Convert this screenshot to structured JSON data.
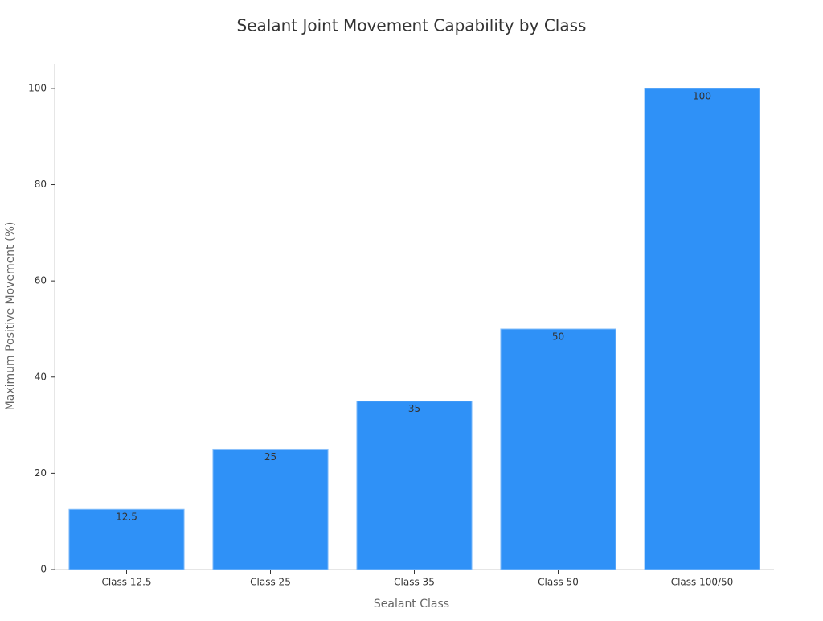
{
  "chart_data": {
    "type": "bar",
    "title": "Sealant Joint Movement Capability by Class",
    "x_label": "Sealant Class",
    "y_label": "Maximum Positive Movement (%)",
    "categories": [
      "Class 12.5",
      "Class 25",
      "Class 35",
      "Class 50",
      "Class 100/50"
    ],
    "values": [
      12.5,
      25,
      35,
      50,
      100
    ],
    "color": "#2f91f7",
    "ylim": [
      0,
      105
    ],
    "yticks": [
      0,
      20,
      40,
      60,
      80,
      100
    ],
    "grid": false
  }
}
